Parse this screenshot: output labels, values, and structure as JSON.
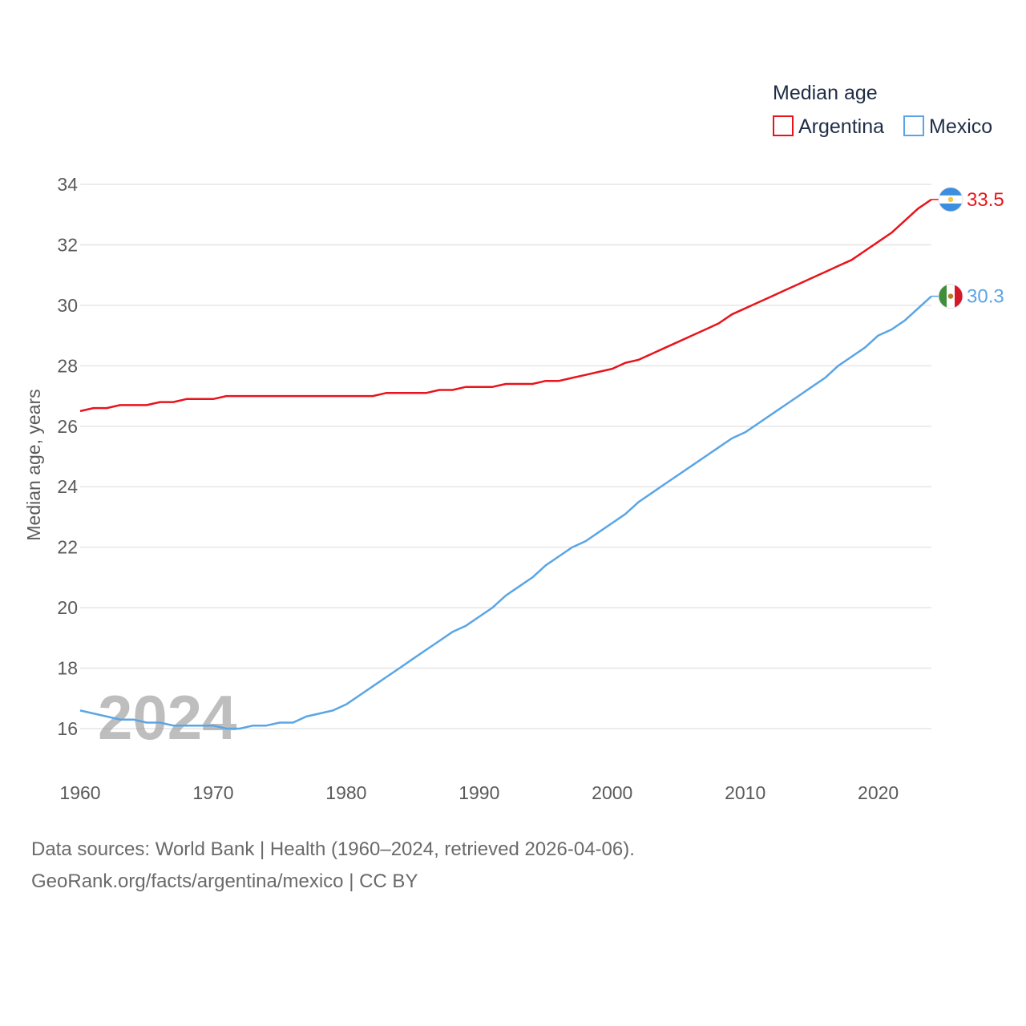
{
  "chart_data": {
    "type": "line",
    "title": "",
    "xlabel": "",
    "ylabel": "Median age, years",
    "xlim": [
      1960,
      2024
    ],
    "ylim": [
      15,
      34.5
    ],
    "yticks": [
      16,
      18,
      20,
      22,
      24,
      26,
      28,
      30,
      32,
      34
    ],
    "xticks": [
      1960,
      1970,
      1980,
      1990,
      2000,
      2010,
      2020
    ],
    "grid": true,
    "legend": {
      "title": "Median age",
      "placement": "top-right"
    },
    "watermark_year": "2024",
    "x": [
      1960,
      1961,
      1962,
      1963,
      1964,
      1965,
      1966,
      1967,
      1968,
      1969,
      1970,
      1971,
      1972,
      1973,
      1974,
      1975,
      1976,
      1977,
      1978,
      1979,
      1980,
      1981,
      1982,
      1983,
      1984,
      1985,
      1986,
      1987,
      1988,
      1989,
      1990,
      1991,
      1992,
      1993,
      1994,
      1995,
      1996,
      1997,
      1998,
      1999,
      2000,
      2001,
      2002,
      2003,
      2004,
      2005,
      2006,
      2007,
      2008,
      2009,
      2010,
      2011,
      2012,
      2013,
      2014,
      2015,
      2016,
      2017,
      2018,
      2019,
      2020,
      2021,
      2022,
      2023,
      2024
    ],
    "series": [
      {
        "name": "Argentina",
        "color": "#e8141b",
        "end_label": "33.5",
        "flag": "argentina-flag",
        "values": [
          26.5,
          26.6,
          26.6,
          26.7,
          26.7,
          26.7,
          26.8,
          26.8,
          26.9,
          26.9,
          26.9,
          27.0,
          27.0,
          27.0,
          27.0,
          27.0,
          27.0,
          27.0,
          27.0,
          27.0,
          27.0,
          27.0,
          27.0,
          27.1,
          27.1,
          27.1,
          27.1,
          27.2,
          27.2,
          27.3,
          27.3,
          27.3,
          27.4,
          27.4,
          27.4,
          27.5,
          27.5,
          27.6,
          27.7,
          27.8,
          27.9,
          28.1,
          28.2,
          28.4,
          28.6,
          28.8,
          29.0,
          29.2,
          29.4,
          29.7,
          29.9,
          30.1,
          30.3,
          30.5,
          30.7,
          30.9,
          31.1,
          31.3,
          31.5,
          31.8,
          32.1,
          32.4,
          32.8,
          33.2,
          33.5
        ]
      },
      {
        "name": "Mexico",
        "color": "#5aa5e6",
        "end_label": "30.3",
        "flag": "mexico-flag",
        "values": [
          16.6,
          16.5,
          16.4,
          16.3,
          16.3,
          16.2,
          16.2,
          16.1,
          16.1,
          16.1,
          16.1,
          16.0,
          16.0,
          16.1,
          16.1,
          16.2,
          16.2,
          16.4,
          16.5,
          16.6,
          16.8,
          17.1,
          17.4,
          17.7,
          18.0,
          18.3,
          18.6,
          18.9,
          19.2,
          19.4,
          19.7,
          20.0,
          20.4,
          20.7,
          21.0,
          21.4,
          21.7,
          22.0,
          22.2,
          22.5,
          22.8,
          23.1,
          23.5,
          23.8,
          24.1,
          24.4,
          24.7,
          25.0,
          25.3,
          25.6,
          25.8,
          26.1,
          26.4,
          26.7,
          27.0,
          27.3,
          27.6,
          28.0,
          28.3,
          28.6,
          29.0,
          29.2,
          29.5,
          29.9,
          30.3
        ]
      }
    ]
  },
  "footer": {
    "line1": "Data sources: World Bank | Health (1960–2024, retrieved 2026-04-06).",
    "line2": "GeoRank.org/facts/argentina/mexico | CC BY"
  }
}
